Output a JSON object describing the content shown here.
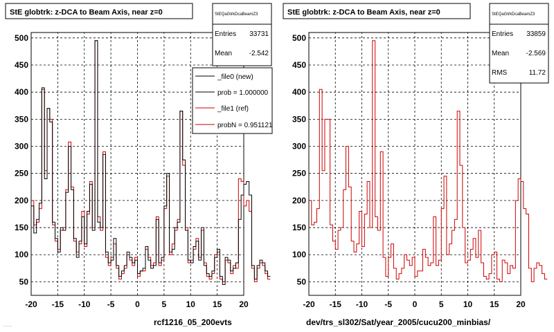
{
  "colors": {
    "new": "#000000",
    "ref": "#cc0000",
    "grid": "#000000",
    "frame": "#000000"
  },
  "chart_data": [
    {
      "type": "line",
      "title": "StE globtrk: z-DCA to Beam Axis, near z=0",
      "xlabel": "rcf1216_05_200evts",
      "ylabel": "",
      "xlim": [
        -20,
        20
      ],
      "ylim": [
        25,
        510
      ],
      "xticks": [
        -20,
        -15,
        -10,
        -5,
        0,
        5,
        10,
        15,
        20
      ],
      "yticks": [
        50,
        100,
        150,
        200,
        250,
        300,
        350,
        400,
        450,
        500
      ],
      "grid": true,
      "stats": {
        "name": "StEQaGtrkDcaBeamZ3",
        "rows": [
          {
            "label": "Entries",
            "value": "33731"
          },
          {
            "label": "Mean",
            "value": "-2.542"
          }
        ]
      },
      "legend": {
        "placement": "top-right",
        "entries": [
          {
            "label": "_file0 (new)",
            "color": "#000000"
          },
          {
            "label": "prob = 1.000000",
            "color": "#000000"
          },
          {
            "label": "_file1 (ref)",
            "color": "#cc0000"
          },
          {
            "label": "probN = 0.951121",
            "color": "#cc0000"
          }
        ]
      },
      "series": [
        {
          "name": "_file0 (new)",
          "color": "#000000",
          "x_edges_start": -20,
          "bin_width": 0.5,
          "values": [
            190,
            140,
            165,
            195,
            408,
            240,
            370,
            345,
            160,
            130,
            105,
            150,
            145,
            215,
            300,
            220,
            130,
            95,
            125,
            170,
            120,
            180,
            230,
            145,
            495,
            160,
            150,
            285,
            105,
            85,
            90,
            130,
            80,
            60,
            70,
            80,
            105,
            95,
            85,
            90,
            65,
            70,
            75,
            115,
            90,
            75,
            80,
            165,
            85,
            95,
            190,
            250,
            105,
            110,
            150,
            160,
            365,
            275,
            145,
            90,
            85,
            115,
            125,
            90,
            150,
            80,
            65,
            60,
            70,
            95,
            110,
            60,
            45,
            95,
            90,
            70,
            75,
            85,
            165,
            210,
            230,
            235,
            210,
            80,
            55,
            80,
            90,
            85,
            70,
            60
          ],
          "values_visible": "approximate"
        },
        {
          "name": "_file1 (ref)",
          "color": "#cc0000",
          "x_edges_start": -20,
          "bin_width": 0.5,
          "values": [
            200,
            155,
            160,
            185,
            405,
            255,
            370,
            350,
            155,
            125,
            110,
            145,
            150,
            220,
            308,
            225,
            125,
            105,
            120,
            180,
            115,
            175,
            235,
            150,
            495,
            170,
            145,
            290,
            95,
            80,
            95,
            120,
            75,
            55,
            65,
            75,
            100,
            90,
            80,
            95,
            60,
            70,
            70,
            110,
            95,
            80,
            85,
            170,
            80,
            90,
            185,
            245,
            100,
            120,
            145,
            165,
            365,
            265,
            150,
            85,
            90,
            110,
            130,
            95,
            145,
            85,
            60,
            55,
            65,
            100,
            105,
            55,
            50,
            90,
            85,
            65,
            80,
            75,
            240,
            235,
            190,
            200,
            180,
            75,
            50,
            75,
            85,
            80,
            65,
            55
          ],
          "values_visible": "approximate"
        }
      ]
    },
    {
      "type": "line",
      "title": "StE globtrk: z-DCA to Beam Axis, near z=0",
      "xlabel": "dev/trs_sl302/Sat/year_2005/cucu200_minbias/",
      "ylabel": "",
      "xlim": [
        -20,
        20
      ],
      "ylim": [
        25,
        510
      ],
      "xticks": [
        -20,
        -15,
        -10,
        -5,
        0,
        5,
        10,
        15,
        20
      ],
      "yticks": [
        50,
        100,
        150,
        200,
        250,
        300,
        350,
        400,
        450,
        500
      ],
      "grid": true,
      "stats": {
        "name": "StEQaGtrkDcaBeamZ3",
        "rows": [
          {
            "label": "Entries",
            "value": "33859"
          },
          {
            "label": "Mean",
            "value": "-2.569"
          },
          {
            "label": "RMS",
            "value": "11.72"
          }
        ]
      },
      "series": [
        {
          "name": "",
          "color": "#cc0000",
          "x_edges_start": -20,
          "bin_width": 0.5,
          "values": [
            200,
            155,
            160,
            185,
            405,
            255,
            350,
            350,
            155,
            125,
            110,
            145,
            150,
            220,
            300,
            225,
            125,
            105,
            120,
            180,
            115,
            175,
            235,
            150,
            495,
            170,
            145,
            290,
            95,
            60,
            95,
            120,
            75,
            55,
            65,
            75,
            100,
            90,
            80,
            95,
            60,
            70,
            70,
            110,
            95,
            80,
            85,
            170,
            80,
            90,
            185,
            245,
            100,
            120,
            145,
            165,
            365,
            265,
            150,
            85,
            90,
            110,
            130,
            95,
            145,
            85,
            60,
            55,
            65,
            100,
            105,
            55,
            50,
            90,
            85,
            65,
            80,
            75,
            200,
            240,
            235,
            185,
            175,
            75,
            50,
            75,
            85,
            80,
            65,
            55
          ]
        }
      ]
    }
  ],
  "footer_note": "........"
}
